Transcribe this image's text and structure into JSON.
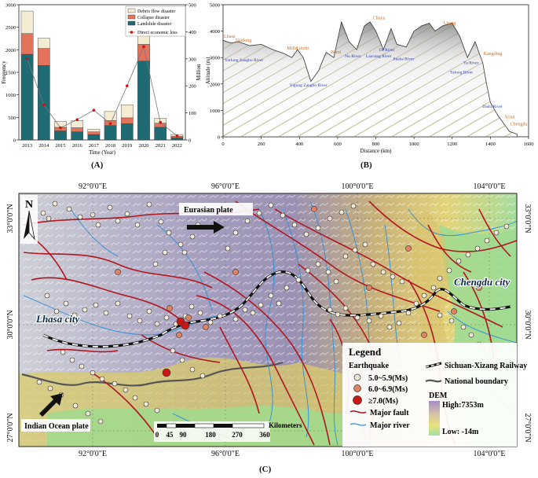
{
  "captions": {
    "a": "(A)",
    "b": "(B)",
    "c": "(C)"
  },
  "chart_data": [
    {
      "type": "bar",
      "stacked": true,
      "categories": [
        "2013",
        "2014",
        "2015",
        "2016",
        "2017",
        "2018",
        "2019",
        "2020",
        "2021",
        "2022"
      ],
      "xlabel": "Time (Year)",
      "ylabel": "Frequency",
      "ylabel_right": "Million",
      "ylim": [
        0,
        3000
      ],
      "ylim_right": [
        0,
        500
      ],
      "yticks": [
        0,
        500,
        1000,
        1500,
        2000,
        2500,
        3000
      ],
      "yticks_right": [
        0,
        100,
        200,
        300,
        400,
        500
      ],
      "legend_position": "top-right",
      "series": [
        {
          "name": "Landslide disaster",
          "color": "#1e6b73",
          "values": [
            1900,
            1650,
            200,
            180,
            120,
            320,
            360,
            1750,
            280,
            50
          ]
        },
        {
          "name": "Collapse disaster",
          "color": "#e2735a",
          "values": [
            460,
            380,
            80,
            90,
            60,
            110,
            130,
            370,
            90,
            30
          ]
        },
        {
          "name": "Debris flow disaster",
          "color": "#f3ecd3",
          "values": [
            500,
            230,
            130,
            160,
            60,
            200,
            290,
            430,
            110,
            40
          ]
        }
      ],
      "line": {
        "name": "Direct economic loss",
        "color": "#c6181c",
        "values": [
          300,
          130,
          45,
          75,
          110,
          60,
          200,
          345,
          65,
          15
        ]
      }
    },
    {
      "type": "area",
      "xlabel": "Distance (km)",
      "ylabel": "Altitude (m)",
      "xlim": [
        0,
        1600
      ],
      "ylim": [
        0,
        5000
      ],
      "xticks": [
        0,
        200,
        400,
        600,
        800,
        1000,
        1200,
        1400,
        1600
      ],
      "yticks": [
        0,
        1000,
        2000,
        3000,
        4000,
        5000
      ],
      "x": [
        0,
        40,
        80,
        140,
        200,
        260,
        320,
        360,
        390,
        420,
        460,
        500,
        540,
        580,
        620,
        660,
        700,
        740,
        770,
        800,
        840,
        880,
        910,
        960,
        1000,
        1040,
        1080,
        1110,
        1150,
        1200,
        1240,
        1280,
        1320,
        1360,
        1380,
        1400,
        1440,
        1470,
        1500,
        1540
      ],
      "y": [
        3650,
        3550,
        3600,
        3450,
        3500,
        3300,
        3150,
        3000,
        3300,
        3000,
        2100,
        2500,
        3200,
        3000,
        4350,
        3600,
        3300,
        4200,
        4350,
        4000,
        3300,
        4100,
        3500,
        3400,
        4000,
        4200,
        4300,
        4000,
        4200,
        4300,
        3800,
        3000,
        3600,
        2800,
        2000,
        1300,
        800,
        500,
        200,
        100
      ],
      "labels": {
        "orange": [
          {
            "text": "Lhasa",
            "x": 0,
            "y": 3750
          },
          {
            "text": "Naidong",
            "x": 60,
            "y": 3600
          },
          {
            "text": "Milin",
            "x": 330,
            "y": 3300
          },
          {
            "text": "Linzhi",
            "x": 380,
            "y": 3300
          },
          {
            "text": "Bomi",
            "x": 560,
            "y": 3150
          },
          {
            "text": "Chuya",
            "x": 780,
            "y": 4450
          },
          {
            "text": "Litang",
            "x": 1150,
            "y": 4250
          },
          {
            "text": "Kangding",
            "x": 1360,
            "y": 3100
          },
          {
            "text": "Ya'an",
            "x": 1470,
            "y": 700
          },
          {
            "text": "Chengdu",
            "x": 1500,
            "y": 430
          }
        ],
        "blue": [
          {
            "text": "Yarlung Zangbo River",
            "x": 0,
            "y": 2850
          },
          {
            "text": "Yigong Zangbo River",
            "x": 340,
            "y": 1900
          },
          {
            "text": "Nu River",
            "x": 630,
            "y": 3000
          },
          {
            "text": "Lancang River",
            "x": 740,
            "y": 3000
          },
          {
            "text": "Jinsha River",
            "x": 880,
            "y": 2900
          },
          {
            "text": "Dr River",
            "x": 810,
            "y": 3250
          },
          {
            "text": "Ya River",
            "x": 1250,
            "y": 2750
          },
          {
            "text": "Yalong River",
            "x": 1180,
            "y": 2400
          },
          {
            "text": "Dadu River",
            "x": 1350,
            "y": 1100
          }
        ]
      }
    }
  ],
  "map": {
    "lon_labels": [
      "92°0'0\"E",
      "96°0'0\"E",
      "100°0'0\"E",
      "104°0'0\"E"
    ],
    "lat_labels": [
      "33°0'0\"N",
      "30°0'0\"N",
      "27°0'0\"N"
    ],
    "north_label": "N",
    "plate_labels": {
      "eurasian": "Eurasian plate",
      "indian": "Indian Ocean plate"
    },
    "city_labels": {
      "lhasa": "Lhasa city",
      "chengdu": "Chengdu city"
    },
    "scalebar": {
      "ticks": [
        "0",
        "45",
        "90",
        "180",
        "270",
        "360"
      ],
      "unit": "Kilometers"
    },
    "legend": {
      "title": "Legend",
      "earthquake_title": "Earthquake",
      "items": [
        {
          "label": "5.0~5.9(Ms)",
          "color": "#f1ead8"
        },
        {
          "label": "6.0~6.9(Ms)",
          "color": "#e0825f"
        },
        {
          "label": "≥7.0(Ms)",
          "color": "#cc1717"
        }
      ],
      "railway": "Sichuan-Xizang Railway",
      "boundary": "National boundary",
      "fault": "Major fault",
      "river": "Major river",
      "dem_title": "DEM",
      "dem_high": "High:7353m",
      "dem_low": "Low: -14m"
    }
  }
}
